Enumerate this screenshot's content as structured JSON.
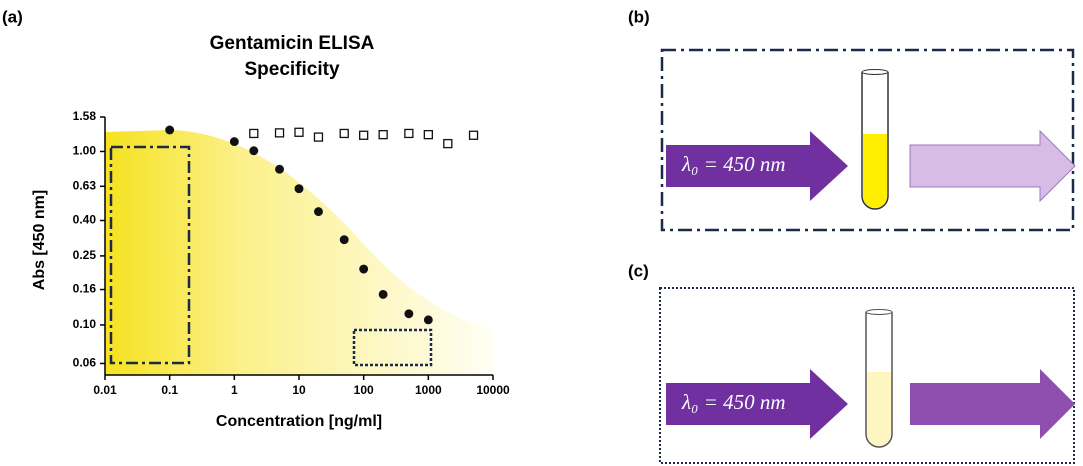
{
  "panel_a": {
    "label": "(a)"
  },
  "chart_data": {
    "type": "scatter",
    "title": "Gentamicin ELISA",
    "subtitle": "Specificity",
    "x_label": "Concentration [ng/ml]",
    "y_label": "Abs [450 nm]",
    "xscale": "log",
    "yscale": "log",
    "xlim": [
      0.01,
      10000
    ],
    "ylim": [
      0.055,
      1.58
    ],
    "xticks": [
      0.01,
      0.1,
      1,
      10,
      100,
      1000,
      10000
    ],
    "yticks": [
      0.06,
      {
        "value": 0.1,
        "label": "0.10"
      },
      0.16,
      0.25,
      {
        "value": 0.4,
        "label": "0.40"
      },
      0.63,
      {
        "value": 1,
        "label": "1.00"
      },
      1.58
    ],
    "series": [
      {
        "marker": "filled-circle",
        "color": "#111111",
        "x": [
          0.1,
          1,
          2,
          5,
          10,
          20,
          50,
          100,
          200,
          500,
          1000
        ],
        "values": [
          1.33,
          1.14,
          1.01,
          0.79,
          0.61,
          0.45,
          0.31,
          0.21,
          0.15,
          0.116,
          0.107
        ]
      },
      {
        "marker": "open-square",
        "color": "#111111",
        "x": [
          2,
          5,
          10,
          20,
          50,
          100,
          200,
          500,
          1000,
          2000,
          5000
        ],
        "values": [
          1.27,
          1.28,
          1.29,
          1.21,
          1.27,
          1.24,
          1.25,
          1.27,
          1.25,
          1.11,
          1.24
        ]
      }
    ]
  },
  "panels": [
    {
      "label": "(b)",
      "wavelength": "λ₀ = 450 nm"
    },
    {
      "label": "(c)",
      "wavelength": "λ₀ = 450 nm"
    }
  ]
}
